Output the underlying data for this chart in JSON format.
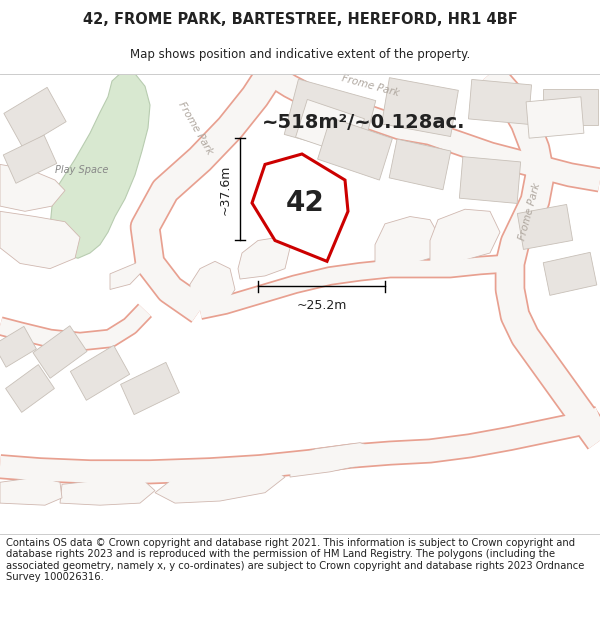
{
  "title_line1": "42, FROME PARK, BARTESTREE, HEREFORD, HR1 4BF",
  "title_line2": "Map shows position and indicative extent of the property.",
  "area_text": "~518m²/~0.128ac.",
  "property_number": "42",
  "dim_width": "~25.2m",
  "dim_height": "~37.6m",
  "footer_text": "Contains OS data © Crown copyright and database right 2021. This information is subject to Crown copyright and database rights 2023 and is reproduced with the permission of HM Land Registry. The polygons (including the associated geometry, namely x, y co-ordinates) are subject to Crown copyright and database rights 2023 Ordnance Survey 100026316.",
  "map_bg": "#f8f6f4",
  "road_outline_color": "#e8a090",
  "road_fill_color": "#f8f6f4",
  "property_fill": "#ffffff",
  "property_edge": "#cc0000",
  "green_fill": "#d8e8d0",
  "green_edge": "#b8ccb0",
  "building_fill": "#e8e4e0",
  "building_edge": "#c8c0b8",
  "plot_outline": "#d0b8b0",
  "text_road": "#b0a8a0",
  "text_label": "#888888",
  "text_dark": "#222222",
  "title_fontsize": 10.5,
  "subtitle_fontsize": 8.5,
  "footer_fontsize": 7.2,
  "area_fontsize": 14,
  "num_fontsize": 20,
  "dim_fontsize": 9
}
